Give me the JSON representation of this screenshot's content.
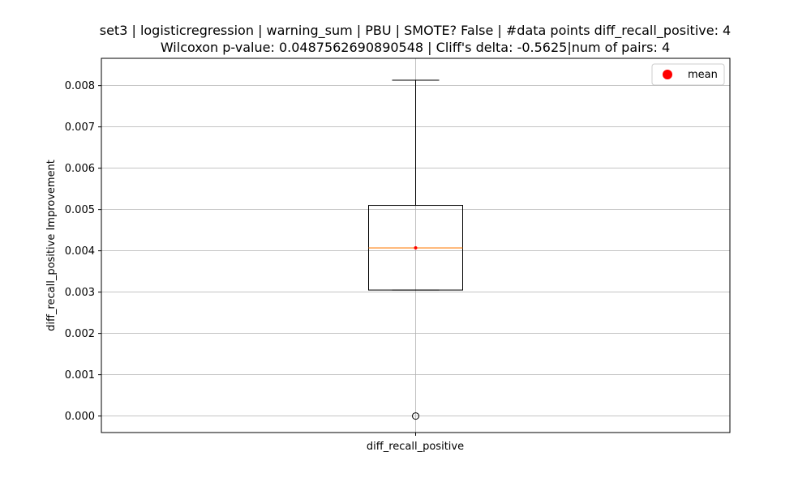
{
  "chart_data": {
    "type": "box",
    "title": "set3 | logisticregression | warning_sum | PBU | SMOTE? False | #data points diff_recall_positive: 4",
    "subtitle": "Wilcoxon p-value: 0.0487562690890548 | Cliff's delta: -0.5625|num of pairs: 4",
    "xlabel": "",
    "ylabel": "diff_recall_positive Improvement",
    "categories": [
      "diff_recall_positive"
    ],
    "ylim": [
      -0.0004,
      0.00866
    ],
    "yticks": [
      "0.000",
      "0.001",
      "0.002",
      "0.003",
      "0.004",
      "0.005",
      "0.006",
      "0.007",
      "0.008"
    ],
    "grid": true,
    "legend": {
      "placement": "top-right",
      "entries": [
        "mean"
      ]
    },
    "box": {
      "whisker_low": 0.00305,
      "q1": 0.00305,
      "median": 0.00407,
      "q3": 0.0051,
      "whisker_high": 0.00813,
      "mean": 0.00407,
      "outliers": [
        0.0
      ]
    },
    "colors": {
      "median": "#ff7f0e",
      "mean": "#ff0000",
      "grid": "#b0b0b0",
      "box": "#000000"
    }
  }
}
